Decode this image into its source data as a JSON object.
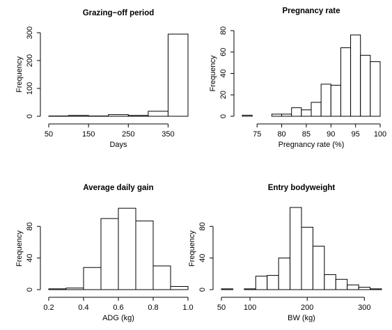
{
  "chart_data": [
    {
      "type": "histogram",
      "title": "Grazing−off period",
      "x_label": "Days",
      "y_label": "Frequency",
      "bins": [
        50,
        100,
        150,
        200,
        250,
        300,
        350,
        400
      ],
      "values": [
        1,
        3,
        1,
        6,
        3,
        18,
        295
      ],
      "color": "#ffffff",
      "xlim": [
        50,
        400
      ],
      "xticks": [
        50,
        150,
        250,
        350
      ],
      "ylim": [
        0,
        300
      ],
      "yticks": [
        0,
        100,
        200,
        300
      ]
    },
    {
      "type": "histogram",
      "title": "Pregnancy rate",
      "x_label": "Pregnancy rate (%)",
      "y_label": "Frequency",
      "bins": [
        72,
        74,
        76,
        78,
        80,
        82,
        84,
        86,
        88,
        90,
        92,
        94,
        96,
        98,
        100
      ],
      "values": [
        1,
        0,
        0,
        2,
        2,
        8,
        6,
        13,
        30,
        29,
        64,
        76,
        57,
        51
      ],
      "color": "#ffffff",
      "xlim": [
        72,
        100
      ],
      "xticks": [
        75,
        80,
        85,
        90,
        95,
        100
      ],
      "ylim": [
        0,
        80
      ],
      "yticks": [
        0,
        20,
        40,
        60,
        80
      ]
    },
    {
      "type": "histogram",
      "title": "Average daily gain",
      "x_label": "ADG (kg)",
      "y_label": "Frequency",
      "bins": [
        0.2,
        0.3,
        0.4,
        0.5,
        0.6,
        0.7,
        0.8,
        0.9,
        1.0
      ],
      "values": [
        1,
        2,
        28,
        90,
        103,
        87,
        30,
        4
      ],
      "color": "#ffffff",
      "xlim": [
        0.2,
        1.0
      ],
      "xticks": [
        0.2,
        0.4,
        0.6,
        0.8,
        {
          "value": 1,
          "label": "1.0"
        }
      ],
      "ylim": [
        0,
        104
      ],
      "yticks": [
        0,
        40,
        80
      ]
    },
    {
      "type": "histogram",
      "title": "Entry bodyweight",
      "x_label": "BW (kg)",
      "y_label": "Frequency",
      "bins": [
        50,
        70,
        90,
        110,
        130,
        150,
        170,
        190,
        210,
        230,
        250,
        270,
        290,
        310,
        330
      ],
      "values": [
        1,
        0,
        1,
        17,
        18,
        40,
        104,
        79,
        55,
        19,
        13,
        6,
        3,
        1
      ],
      "color": "#ffffff",
      "xlim": [
        50,
        330
      ],
      "xticks": [
        50,
        100,
        200,
        300
      ],
      "ylim": [
        0,
        104
      ],
      "yticks": [
        0,
        40,
        80
      ]
    }
  ]
}
